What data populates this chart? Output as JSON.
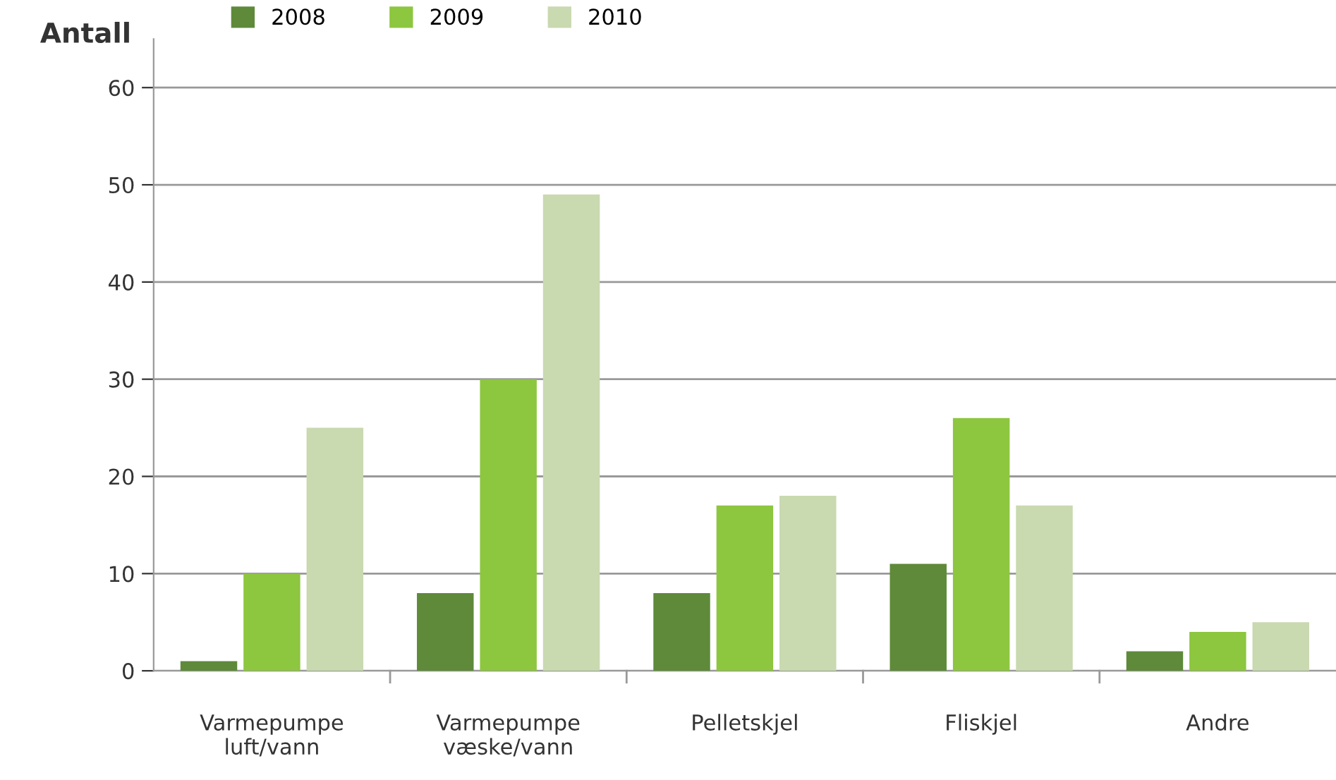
{
  "chart_data": {
    "type": "bar",
    "ylabel": "Antall",
    "categories": [
      "Varmepumpe\nluft/vann",
      "Varmepumpe\nvæske/vann",
      "Pelletskjel",
      "Fliskjel",
      "Andre"
    ],
    "series": [
      {
        "name": "2008",
        "color": "#5e8a3a",
        "values": [
          1,
          8,
          8,
          11,
          2
        ]
      },
      {
        "name": "2009",
        "color": "#8dc63f",
        "values": [
          10,
          30,
          17,
          26,
          4
        ]
      },
      {
        "name": "2010",
        "color": "#c9d9b0",
        "values": [
          25,
          49,
          18,
          17,
          5
        ]
      }
    ],
    "ylim": [
      0,
      65
    ],
    "yticks": [
      0,
      10,
      20,
      30,
      40,
      50,
      60
    ],
    "grid": "y",
    "legend": "top"
  }
}
